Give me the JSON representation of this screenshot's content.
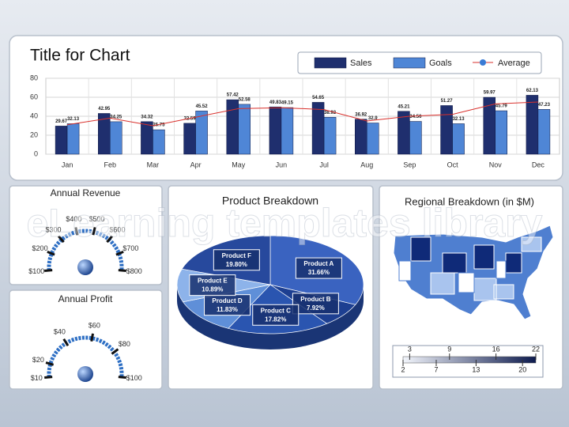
{
  "watermark": "eLearning templates library",
  "chart_data": [
    {
      "type": "bar",
      "title": "Title for Chart",
      "categories": [
        "Jan",
        "Feb",
        "Mar",
        "Apr",
        "May",
        "Jun",
        "Jul",
        "Aug",
        "Sep",
        "Oct",
        "Nov",
        "Dec"
      ],
      "series": [
        {
          "name": "Sales",
          "color": "#1f2f6e",
          "values": [
            29.67,
            42.95,
            34.32,
            32.59,
            57.42,
            49.83,
            54.65,
            36.92,
            45.21,
            51.27,
            59.97,
            62.13
          ]
        },
        {
          "name": "Goals",
          "color": "#4f86d6",
          "values": [
            32.13,
            34.25,
            25.75,
            45.52,
            52.58,
            49.15,
            38.92,
            32.9,
            34.56,
            32.13,
            45.79,
            47.23
          ]
        },
        {
          "name": "Average",
          "color": "#d9302c",
          "type": "line",
          "values": [
            31,
            38,
            30,
            39,
            48,
            49,
            47,
            35,
            40,
            42,
            53,
            55
          ]
        }
      ],
      "ylim": [
        0,
        80
      ],
      "yticks": [
        0,
        20,
        40,
        60,
        80
      ],
      "grid": true,
      "legend": "top-right"
    },
    {
      "type": "gauge",
      "title": "Annual Revenue",
      "range": [
        100,
        800
      ],
      "value": 450,
      "ticks": [
        {
          "value": 100,
          "label": "$100"
        },
        {
          "value": 200,
          "label": "$200"
        },
        {
          "value": 300,
          "label": "$300"
        },
        {
          "value": 400,
          "label": "$400"
        },
        {
          "value": 500,
          "label": "$500"
        },
        {
          "value": 600,
          "label": "$600"
        },
        {
          "value": 700,
          "label": "$700"
        },
        {
          "value": 800,
          "label": "$800"
        }
      ],
      "color": "#2e6fc4"
    },
    {
      "type": "gauge",
      "title": "Annual Profit",
      "range": [
        10,
        100
      ],
      "value": 55,
      "ticks": [
        {
          "value": 10,
          "label": "$10"
        },
        {
          "value": 20,
          "label": "$20"
        },
        {
          "value": 40,
          "label": "$40"
        },
        {
          "value": 60,
          "label": "$60"
        },
        {
          "value": 80,
          "label": "$80"
        },
        {
          "value": 100,
          "label": "$100"
        }
      ],
      "color": "#2e6fc4"
    },
    {
      "type": "pie",
      "title": "Product Breakdown",
      "categories": [
        "Product A",
        "Product B",
        "Product C",
        "Product D",
        "Product E",
        "Product F"
      ],
      "values": [
        31.66,
        7.92,
        17.82,
        11.83,
        10.89,
        19.8
      ],
      "value_labels": [
        "31.66%",
        "7.92%",
        "17.82%",
        "11.83%",
        "10.89%",
        "19.80%"
      ],
      "colors": [
        "#3a63c0",
        "#1d3f91",
        "#2a55b0",
        "#5f8fd8",
        "#8db3ea",
        "#27499d"
      ]
    },
    {
      "type": "map",
      "title": "Regional Breakdown (in $M)",
      "clim": [
        2,
        22
      ],
      "ticks": [
        2,
        3,
        7,
        9,
        13,
        16,
        20,
        22
      ],
      "colorscale": [
        "#f2f5fb",
        "#0d1a4d"
      ]
    }
  ]
}
